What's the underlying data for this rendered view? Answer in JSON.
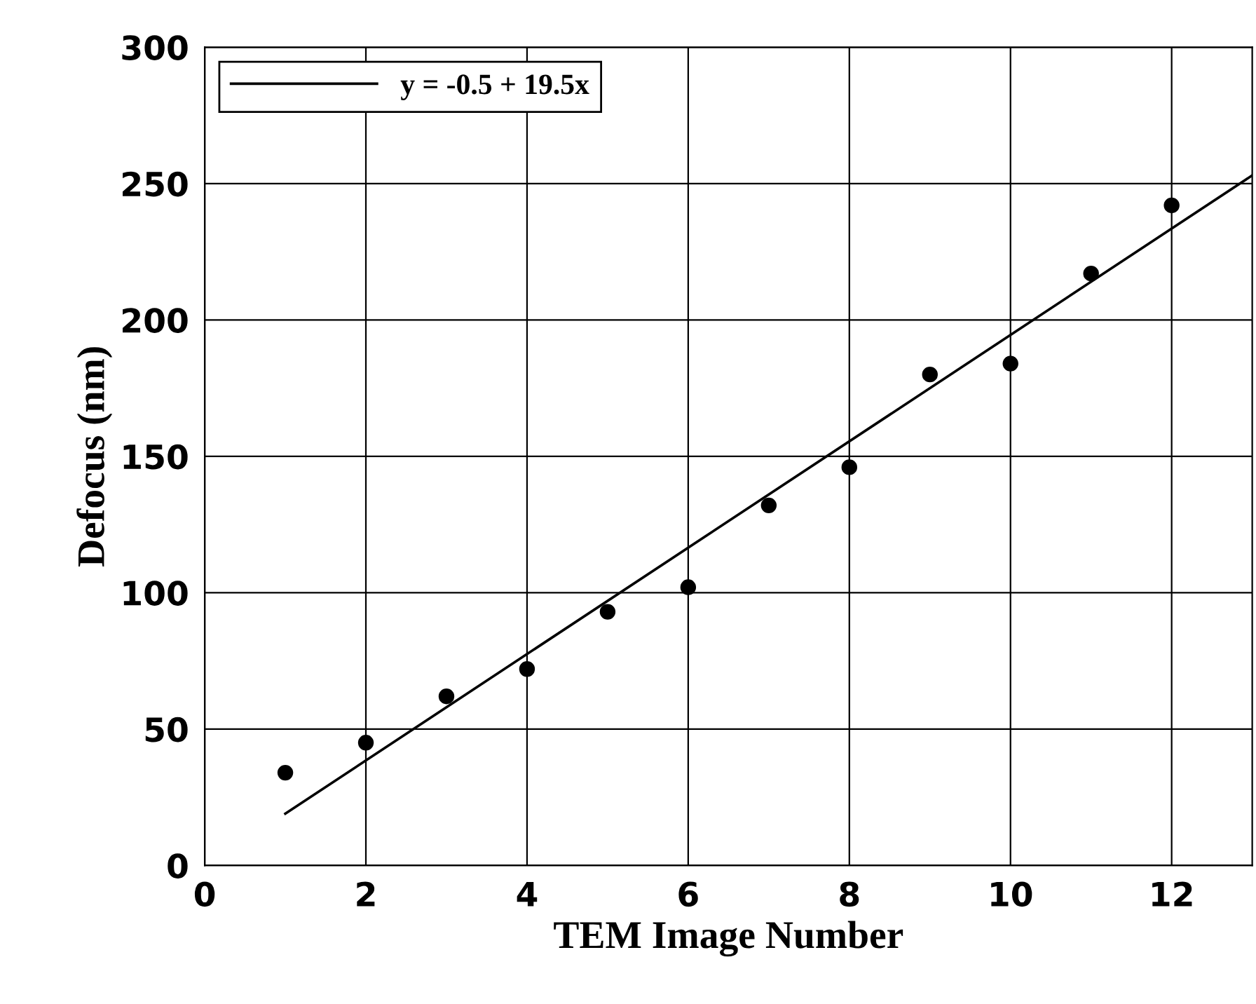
{
  "chart_data": {
    "type": "scatter",
    "xlabel": "TEM Image Number",
    "ylabel": "Defocus (nm)",
    "xlim": [
      0,
      13
    ],
    "ylim": [
      0,
      300
    ],
    "xticks": [
      0,
      2,
      4,
      6,
      8,
      10,
      12
    ],
    "yticks": [
      0,
      50,
      100,
      150,
      200,
      250,
      300
    ],
    "grid": true,
    "legend": "top left",
    "series": [
      {
        "color": "#000000",
        "marker": "circle",
        "x": [
          1,
          2,
          3,
          4,
          5,
          6,
          7,
          8,
          9,
          10,
          11,
          12
        ],
        "values": [
          34,
          45,
          62,
          72,
          93,
          102,
          132,
          146,
          180,
          184,
          217,
          242
        ]
      },
      {
        "type": "line",
        "name": "y = -0.5 + 19.5x",
        "color": "#000000",
        "line_style": "solid",
        "x": [
          1,
          13
        ],
        "values": [
          19,
          253
        ]
      }
    ]
  }
}
